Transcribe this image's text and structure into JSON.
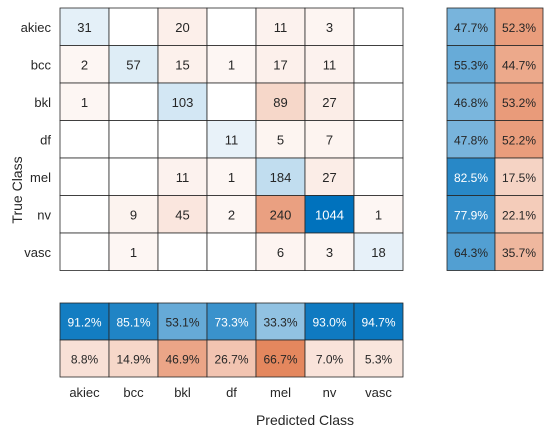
{
  "chart_data": {
    "type": "heatmap",
    "xlabel": "Predicted Class",
    "ylabel": "True Class",
    "classes": [
      "akiec",
      "bcc",
      "bkl",
      "df",
      "mel",
      "nv",
      "vasc"
    ],
    "matrix": [
      [
        31,
        null,
        20,
        null,
        11,
        3,
        null
      ],
      [
        2,
        57,
        15,
        1,
        17,
        11,
        null
      ],
      [
        1,
        null,
        103,
        null,
        89,
        27,
        null
      ],
      [
        null,
        null,
        null,
        11,
        5,
        7,
        null
      ],
      [
        null,
        null,
        11,
        1,
        184,
        27,
        null
      ],
      [
        null,
        9,
        45,
        2,
        240,
        1044,
        1
      ],
      [
        null,
        1,
        null,
        null,
        6,
        3,
        18
      ]
    ],
    "row_summary": [
      [
        "47.7%",
        "52.3%"
      ],
      [
        "55.3%",
        "44.7%"
      ],
      [
        "46.8%",
        "53.2%"
      ],
      [
        "47.8%",
        "52.2%"
      ],
      [
        "82.5%",
        "17.5%"
      ],
      [
        "77.9%",
        "22.1%"
      ],
      [
        "64.3%",
        "35.7%"
      ]
    ],
    "row_summary_values": [
      [
        47.7,
        52.3
      ],
      [
        55.3,
        44.7
      ],
      [
        46.8,
        53.2
      ],
      [
        47.8,
        52.2
      ],
      [
        82.5,
        17.5
      ],
      [
        77.9,
        22.1
      ],
      [
        64.3,
        35.7
      ]
    ],
    "col_summary": [
      [
        "91.2%",
        "85.1%",
        "53.1%",
        "73.3%",
        "33.3%",
        "93.0%",
        "94.7%"
      ],
      [
        "8.8%",
        "14.9%",
        "46.9%",
        "26.7%",
        "66.7%",
        "7.0%",
        "5.3%"
      ]
    ],
    "col_summary_values": [
      [
        91.2,
        85.1,
        53.1,
        73.3,
        33.3,
        93.0,
        94.7
      ],
      [
        8.8,
        14.9,
        46.9,
        26.7,
        66.7,
        7.0,
        5.3
      ]
    ],
    "colors": {
      "correct": "#0072bd",
      "incorrect": "#d95319",
      "border": "#262626"
    }
  }
}
